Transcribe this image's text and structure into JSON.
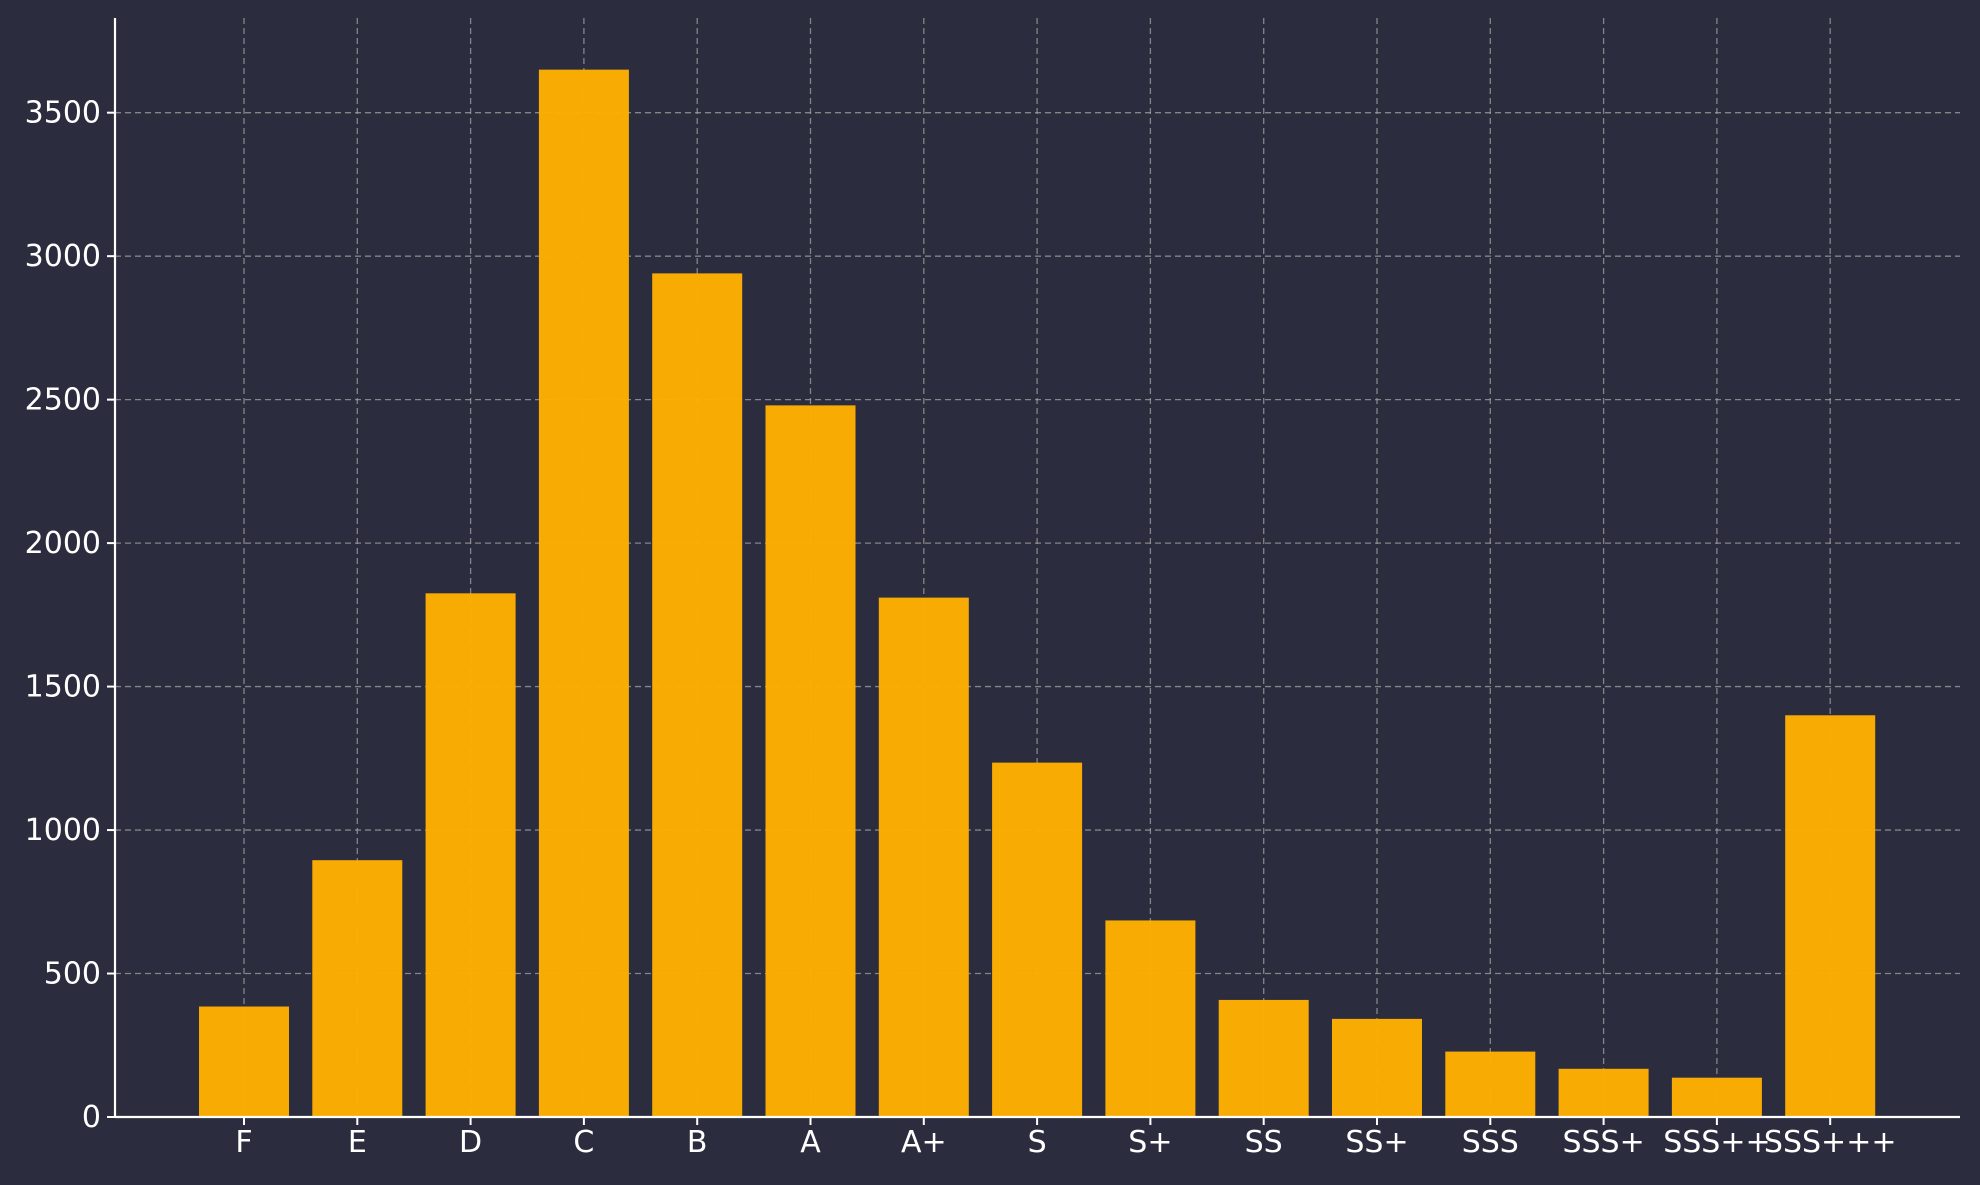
{
  "colors": {
    "background": "#2b2d3e",
    "bar": "#ffb000",
    "grid": "#a3a3a3",
    "axis": "#ffffff",
    "text": "#ffffff"
  },
  "chart_data": {
    "type": "bar",
    "title": "",
    "xlabel": "",
    "ylabel": "",
    "categories": [
      "F",
      "E",
      "D",
      "C",
      "B",
      "A",
      "A+",
      "S",
      "S+",
      "SS",
      "SS+",
      "SSS",
      "SSS+",
      "SSS++",
      "SSS+++"
    ],
    "values": [
      385,
      895,
      1825,
      3650,
      2940,
      2480,
      1810,
      1235,
      685,
      408,
      342,
      228,
      168,
      137,
      1400
    ],
    "ylim": [
      0,
      3830
    ],
    "yticks": [
      0,
      500,
      1000,
      1500,
      2000,
      2500,
      3000,
      3500
    ],
    "grid": true,
    "legend": "none"
  }
}
